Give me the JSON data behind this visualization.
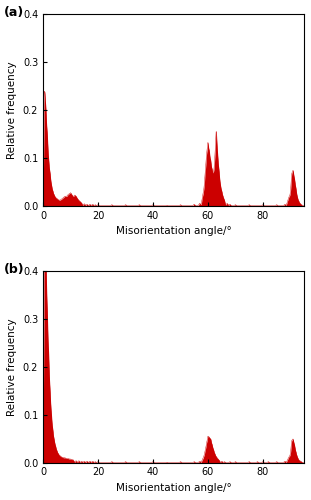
{
  "title_a": "(a)",
  "title_b": "(b)",
  "xlabel": "Misorientation angle/°",
  "ylabel": "Relative frequency",
  "xlim": [
    0,
    95
  ],
  "ylim": [
    0,
    0.4
  ],
  "yticks": [
    0.0,
    0.1,
    0.2,
    0.3,
    0.4
  ],
  "xticks": [
    0,
    20,
    40,
    60,
    80
  ],
  "bar_color": "#cc0000",
  "background": "#ffffff",
  "panel_a": {
    "bars": [
      [
        0.5,
        0.21
      ],
      [
        1.0,
        0.16
      ],
      [
        1.5,
        0.12
      ],
      [
        2.0,
        0.075
      ],
      [
        2.5,
        0.055
      ],
      [
        3.0,
        0.035
      ],
      [
        3.5,
        0.025
      ],
      [
        4.0,
        0.018
      ],
      [
        4.5,
        0.014
      ],
      [
        5.0,
        0.012
      ],
      [
        5.5,
        0.01
      ],
      [
        6.0,
        0.009
      ],
      [
        6.5,
        0.01
      ],
      [
        7.0,
        0.012
      ],
      [
        7.5,
        0.014
      ],
      [
        8.0,
        0.016
      ],
      [
        8.5,
        0.015
      ],
      [
        9.0,
        0.018
      ],
      [
        9.5,
        0.02
      ],
      [
        10.0,
        0.022
      ],
      [
        10.5,
        0.018
      ],
      [
        11.0,
        0.015
      ],
      [
        11.5,
        0.018
      ],
      [
        12.0,
        0.016
      ],
      [
        12.5,
        0.012
      ],
      [
        13.0,
        0.009
      ],
      [
        13.5,
        0.007
      ],
      [
        14.0,
        0.005
      ],
      [
        15.0,
        0.004
      ],
      [
        16.0,
        0.003
      ],
      [
        17.0,
        0.003
      ],
      [
        18.0,
        0.003
      ],
      [
        19.0,
        0.002
      ],
      [
        20.0,
        0.002
      ],
      [
        25.0,
        0.002
      ],
      [
        30.0,
        0.002
      ],
      [
        35.0,
        0.002
      ],
      [
        40.0,
        0.002
      ],
      [
        45.0,
        0.001
      ],
      [
        50.0,
        0.002
      ],
      [
        55.0,
        0.003
      ],
      [
        57.0,
        0.005
      ],
      [
        58.0,
        0.015
      ],
      [
        58.5,
        0.025
      ],
      [
        59.0,
        0.055
      ],
      [
        59.5,
        0.085
      ],
      [
        60.0,
        0.108
      ],
      [
        60.5,
        0.09
      ],
      [
        61.0,
        0.075
      ],
      [
        61.5,
        0.06
      ],
      [
        62.0,
        0.052
      ],
      [
        62.5,
        0.075
      ],
      [
        63.0,
        0.133
      ],
      [
        63.5,
        0.085
      ],
      [
        64.0,
        0.06
      ],
      [
        64.5,
        0.035
      ],
      [
        65.0,
        0.025
      ],
      [
        65.5,
        0.015
      ],
      [
        66.0,
        0.01
      ],
      [
        67.0,
        0.005
      ],
      [
        68.0,
        0.003
      ],
      [
        70.0,
        0.002
      ],
      [
        75.0,
        0.002
      ],
      [
        80.0,
        0.002
      ],
      [
        85.0,
        0.002
      ],
      [
        88.0,
        0.003
      ],
      [
        89.0,
        0.008
      ],
      [
        89.5,
        0.015
      ],
      [
        90.0,
        0.018
      ],
      [
        90.5,
        0.055
      ],
      [
        91.0,
        0.06
      ],
      [
        91.5,
        0.045
      ],
      [
        92.0,
        0.03
      ],
      [
        92.5,
        0.015
      ],
      [
        93.0,
        0.008
      ],
      [
        93.5,
        0.004
      ],
      [
        94.0,
        0.002
      ]
    ]
  },
  "panel_b": {
    "bars": [
      [
        0.5,
        0.405
      ],
      [
        1.0,
        0.35
      ],
      [
        1.5,
        0.25
      ],
      [
        2.0,
        0.18
      ],
      [
        2.5,
        0.12
      ],
      [
        3.0,
        0.08
      ],
      [
        3.5,
        0.055
      ],
      [
        4.0,
        0.038
      ],
      [
        4.5,
        0.028
      ],
      [
        5.0,
        0.02
      ],
      [
        5.5,
        0.015
      ],
      [
        6.0,
        0.012
      ],
      [
        6.5,
        0.01
      ],
      [
        7.0,
        0.009
      ],
      [
        7.5,
        0.008
      ],
      [
        8.0,
        0.008
      ],
      [
        8.5,
        0.007
      ],
      [
        9.0,
        0.007
      ],
      [
        9.5,
        0.006
      ],
      [
        10.0,
        0.006
      ],
      [
        10.5,
        0.005
      ],
      [
        11.0,
        0.005
      ],
      [
        12.0,
        0.004
      ],
      [
        13.0,
        0.004
      ],
      [
        14.0,
        0.003
      ],
      [
        15.0,
        0.003
      ],
      [
        16.0,
        0.003
      ],
      [
        17.0,
        0.003
      ],
      [
        18.0,
        0.003
      ],
      [
        19.0,
        0.002
      ],
      [
        20.0,
        0.002
      ],
      [
        25.0,
        0.002
      ],
      [
        30.0,
        0.002
      ],
      [
        35.0,
        0.002
      ],
      [
        40.0,
        0.002
      ],
      [
        45.0,
        0.001
      ],
      [
        50.0,
        0.002
      ],
      [
        55.0,
        0.002
      ],
      [
        57.0,
        0.003
      ],
      [
        58.0,
        0.005
      ],
      [
        58.5,
        0.01
      ],
      [
        59.0,
        0.02
      ],
      [
        59.5,
        0.032
      ],
      [
        60.0,
        0.045
      ],
      [
        60.5,
        0.042
      ],
      [
        61.0,
        0.04
      ],
      [
        61.5,
        0.03
      ],
      [
        62.0,
        0.022
      ],
      [
        62.5,
        0.015
      ],
      [
        63.0,
        0.01
      ],
      [
        63.5,
        0.007
      ],
      [
        64.0,
        0.005
      ],
      [
        65.0,
        0.003
      ],
      [
        66.0,
        0.002
      ],
      [
        68.0,
        0.002
      ],
      [
        70.0,
        0.002
      ],
      [
        75.0,
        0.002
      ],
      [
        78.0,
        0.002
      ],
      [
        80.0,
        0.002
      ],
      [
        82.0,
        0.002
      ],
      [
        85.0,
        0.002
      ],
      [
        88.0,
        0.003
      ],
      [
        89.0,
        0.005
      ],
      [
        89.5,
        0.01
      ],
      [
        90.0,
        0.012
      ],
      [
        90.5,
        0.038
      ],
      [
        91.0,
        0.04
      ],
      [
        91.5,
        0.03
      ],
      [
        92.0,
        0.018
      ],
      [
        92.5,
        0.01
      ],
      [
        93.0,
        0.005
      ],
      [
        93.5,
        0.003
      ],
      [
        94.0,
        0.002
      ]
    ]
  }
}
